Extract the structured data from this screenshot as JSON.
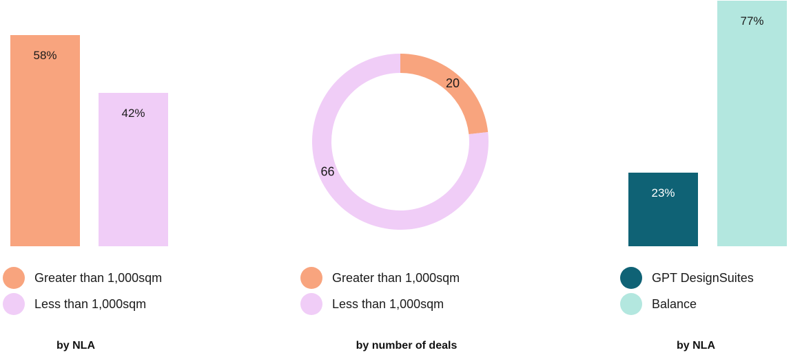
{
  "chart_data": [
    {
      "type": "bar",
      "categories": [
        "Greater than 1,000sqm",
        "Less than 1,000sqm"
      ],
      "values": [
        58,
        42
      ],
      "data_labels": [
        "58%",
        "42%"
      ],
      "colors": [
        "#f8a47e",
        "#f0cdf7"
      ],
      "ylim": [
        0,
        100
      ],
      "legend": [
        {
          "label": "Greater than 1,000sqm",
          "color": "#f8a47e"
        },
        {
          "label": "Less than 1,000sqm",
          "color": "#f0cdf7"
        }
      ],
      "legend_position": "bottom",
      "caption": "by NLA"
    },
    {
      "type": "pie",
      "style": "donut",
      "categories": [
        "Greater than 1,000sqm",
        "Less than 1,000sqm"
      ],
      "values": [
        20,
        66
      ],
      "data_labels": [
        "20",
        "66"
      ],
      "colors": [
        "#f8a47e",
        "#f0cdf7"
      ],
      "legend": [
        {
          "label": "Greater than 1,000sqm",
          "color": "#f8a47e"
        },
        {
          "label": "Less than 1,000sqm",
          "color": "#f0cdf7"
        }
      ],
      "legend_position": "bottom",
      "caption": "by number of deals"
    },
    {
      "type": "bar",
      "categories": [
        "GPT DesignSuites",
        "Balance"
      ],
      "values": [
        23,
        77
      ],
      "data_labels": [
        "23%",
        "77%"
      ],
      "colors": [
        "#0f6275",
        "#b3e7df"
      ],
      "ylim": [
        0,
        100
      ],
      "legend": [
        {
          "label": "GPT DesignSuites",
          "color": "#0f6275"
        },
        {
          "label": "Balance",
          "color": "#b3e7df"
        }
      ],
      "legend_position": "bottom",
      "caption": "by NLA"
    }
  ]
}
